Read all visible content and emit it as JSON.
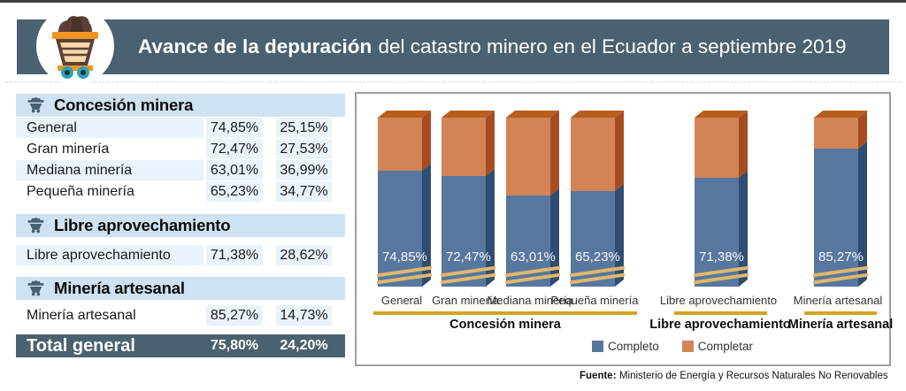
{
  "header": {
    "title_bold": "Avance de la depuración",
    "title_rest": "del catastro minero en el Ecuador a septiembre 2019"
  },
  "panel": {
    "sections": [
      {
        "header": "Concesión minera",
        "rows": [
          [
            "General",
            "74,85%",
            "25,15%"
          ],
          [
            "Gran minería",
            "72,47%",
            "27,53%"
          ],
          [
            "Mediana minería",
            "63,01%",
            "36,99%"
          ],
          [
            "Pequeña minería",
            "65,23%",
            "34,77%"
          ]
        ]
      },
      {
        "header": "Libre aprovechamiento",
        "rows": [
          [
            "Libre aprovechamiento",
            "71,38%",
            "28,62%"
          ]
        ]
      },
      {
        "header": "Minería artesanal",
        "rows": [
          [
            "Minería artesanal",
            "85,27%",
            "14,73%"
          ]
        ]
      }
    ],
    "total": {
      "label": "Total general",
      "completo": "75,80%",
      "completar": "24,20%"
    }
  },
  "chart_data": {
    "type": "bar",
    "stacked": true,
    "unit": "%",
    "categories": [
      "General",
      "Gran minería",
      "Mediana minería",
      "Pequeña minería",
      "Libre aprovechamiento",
      "Minería artesanal"
    ],
    "series": [
      {
        "name": "Completo",
        "color": "#57779e",
        "values": [
          74.85,
          72.47,
          63.01,
          65.23,
          71.38,
          85.27
        ]
      },
      {
        "name": "Completar",
        "color": "#d28457",
        "values": [
          25.15,
          27.53,
          36.99,
          34.77,
          28.62,
          14.73
        ]
      }
    ],
    "bar_value_labels": [
      "74,85%",
      "72,47%",
      "63,01%",
      "65,23%",
      "71,38%",
      "85,27%"
    ],
    "groups": [
      {
        "label": "Concesión minera",
        "bars": [
          0,
          1,
          2,
          3
        ]
      },
      {
        "label": "Libre aprovechamiento",
        "bars": [
          4
        ]
      },
      {
        "label": "Minería artesanal",
        "bars": [
          5
        ]
      }
    ],
    "axis_break": true,
    "legend_position": "bottom",
    "ylim": [
      0,
      100
    ]
  },
  "source": {
    "label": "Fuente:",
    "text": "Ministerio de Energía y Recursos Naturales No Renovables"
  },
  "colors": {
    "slate_band": "#4a616f",
    "section_header_bg": "#cfe2f1",
    "cell_bg": "#eaf2fa",
    "gold_line": "#d4a41f",
    "break_stripe": "#dfb76c",
    "bar_blue": "#57779e",
    "bar_orange": "#d28457",
    "cart_orange": "#f39422",
    "cart_teal": "#29a3b8"
  }
}
